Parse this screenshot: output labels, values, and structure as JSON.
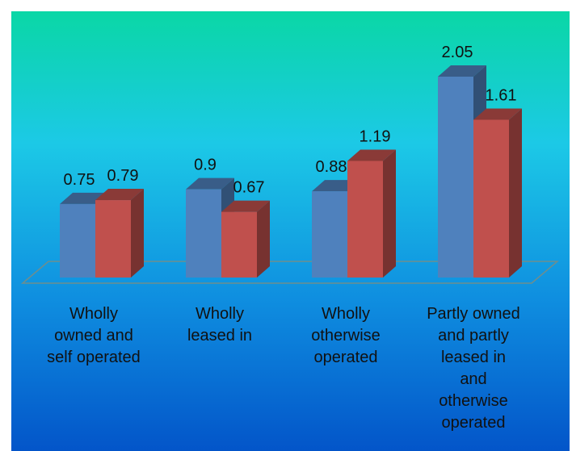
{
  "chart_data": {
    "type": "bar",
    "style": "3d-clustered-column",
    "categories": [
      [
        "Wholly",
        "owned and",
        "self operated"
      ],
      [
        "Wholly",
        "leased in"
      ],
      [
        "Wholly",
        "otherwise",
        "operated"
      ],
      [
        "Partly owned",
        "and partly",
        "leased in",
        "and",
        "otherwise",
        "operated"
      ]
    ],
    "series": [
      {
        "values": [
          0.75,
          0.9,
          0.88,
          2.05
        ],
        "color": "#4f81bd"
      },
      {
        "values": [
          0.79,
          0.67,
          1.19,
          1.61
        ],
        "color": "#c0504d"
      }
    ],
    "ylim": [
      0,
      2.05
    ],
    "title": "",
    "xlabel": "",
    "ylabel": "",
    "grid": false,
    "legend": "none",
    "background_gradient": [
      "#0ad7a6",
      "#1cc9e6",
      "#0f8fe0",
      "#0355c9"
    ]
  }
}
